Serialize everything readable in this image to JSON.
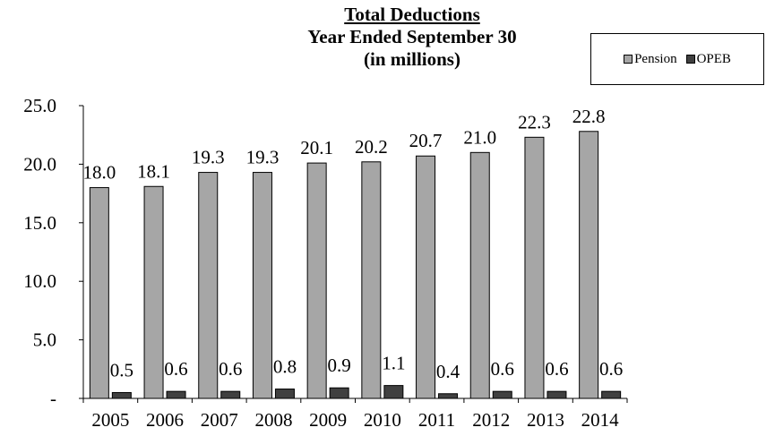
{
  "chart_data": {
    "type": "bar",
    "title_lines": [
      "Total Deductions",
      "Year Ended September 30",
      "(in millions)"
    ],
    "categories": [
      "2005",
      "2006",
      "2007",
      "2008",
      "2009",
      "2010",
      "2011",
      "2012",
      "2013",
      "2014"
    ],
    "series": [
      {
        "name": "Pension",
        "color": "#a6a6a6",
        "values": [
          18.0,
          18.1,
          19.3,
          19.3,
          20.1,
          20.2,
          20.7,
          21.0,
          22.3,
          22.8
        ],
        "labels": [
          "18.0",
          "18.1",
          "19.3",
          "19.3",
          "20.1",
          "20.2",
          "20.7",
          "21.0",
          "22.3",
          "22.8"
        ]
      },
      {
        "name": "OPEB",
        "color": "#404040",
        "values": [
          0.5,
          0.6,
          0.6,
          0.8,
          0.9,
          1.1,
          0.4,
          0.6,
          0.6,
          0.6
        ],
        "labels": [
          "0.5",
          "0.6",
          "0.6",
          "0.8",
          "0.9",
          "1.1",
          "0.4",
          "0.6",
          "0.6",
          "0.6"
        ]
      }
    ],
    "ylim": [
      0,
      25
    ],
    "yticks": [
      0,
      5,
      10,
      15,
      20,
      25
    ],
    "ytick_labels": [
      "-",
      "5.0",
      "10.0",
      "15.0",
      "20.0",
      "25.0"
    ],
    "grid": false,
    "legend_position": "top-right"
  }
}
